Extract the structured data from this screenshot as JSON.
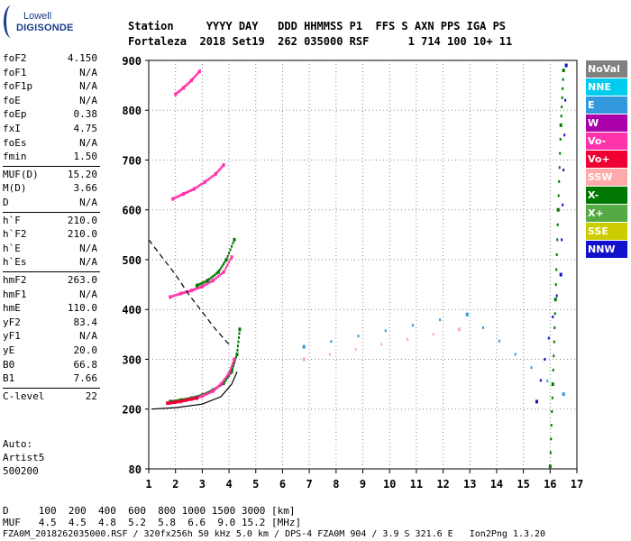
{
  "logo": {
    "line1": "Lowell",
    "line2": "DIGISONDE"
  },
  "header": {
    "row1": "Station     YYYY DAY   DDD HHMMSS P1  FFS S AXN PPS IGA PS",
    "row2": "Fortaleza  2018 Set19  262 035000 RSF      1 714 100 10+ 11"
  },
  "params": {
    "group1": [
      {
        "k": "foF2",
        "v": "4.150"
      },
      {
        "k": "foF1",
        "v": "N/A"
      },
      {
        "k": "foF1p",
        "v": "N/A"
      },
      {
        "k": "foE",
        "v": "N/A"
      },
      {
        "k": "foEp",
        "v": "0.38"
      },
      {
        "k": "fxI",
        "v": "4.75"
      },
      {
        "k": "foEs",
        "v": "N/A"
      },
      {
        "k": "fmin",
        "v": "1.50"
      }
    ],
    "group2": [
      {
        "k": "MUF(D)",
        "v": "15.20"
      },
      {
        "k": "M(D)",
        "v": "3.66"
      },
      {
        "k": "D",
        "v": "N/A"
      }
    ],
    "group3": [
      {
        "k": "h`F",
        "v": "210.0"
      },
      {
        "k": "h`F2",
        "v": "210.0"
      },
      {
        "k": "h`E",
        "v": "N/A"
      },
      {
        "k": "h`Es",
        "v": "N/A"
      }
    ],
    "group4": [
      {
        "k": "hmF2",
        "v": "263.0"
      },
      {
        "k": "hmF1",
        "v": "N/A"
      },
      {
        "k": "hmE",
        "v": "110.0"
      },
      {
        "k": "yF2",
        "v": "83.4"
      },
      {
        "k": "yF1",
        "v": "N/A"
      },
      {
        "k": "yE",
        "v": "20.0"
      },
      {
        "k": "B0",
        "v": "66.8"
      },
      {
        "k": "B1",
        "v": "7.66"
      }
    ],
    "group5": [
      {
        "k": "C-level",
        "v": "22"
      }
    ]
  },
  "auto": {
    "label": "Auto:",
    "artist": "Artist5",
    "version": "500200"
  },
  "legend": [
    {
      "label": "NoVal",
      "color": "#808080"
    },
    {
      "label": "NNE",
      "color": "#00ccee"
    },
    {
      "label": "E",
      "color": "#3399dd"
    },
    {
      "label": "W",
      "color": "#aa00aa"
    },
    {
      "label": "Vo-",
      "color": "#ff33aa"
    },
    {
      "label": "Vo+",
      "color": "#ee0033"
    },
    {
      "label": "SSW",
      "color": "#ffaaaa"
    },
    {
      "label": "X-",
      "color": "#007700"
    },
    {
      "label": "X+",
      "color": "#55aa44"
    },
    {
      "label": "SSE",
      "color": "#cccc00"
    },
    {
      "label": "NNW",
      "color": "#1111cc"
    }
  ],
  "footer": {
    "row1": "D     100  200  400  600  800 1000 1500 3000 [km]",
    "row2": "MUF   4.5  4.5  4.8  5.2  5.8  6.6  9.0 15.2 [MHz]",
    "row3": "FZA0M_2018262035000.RSF / 320fx256h 50 kHz 5.0 km / DPS-4 FZA0M 904 / 3.9 S 321.6 E   Ion2Png 1.3.20"
  },
  "chart_data": {
    "type": "scatter",
    "x_ticks": [
      "1",
      "2",
      "3",
      "4",
      "5",
      "6",
      "7",
      "8",
      "9",
      "10",
      "11",
      "12",
      "13",
      "14",
      "15",
      "16",
      "17"
    ],
    "y_ticks": [
      "80",
      "200",
      "300",
      "400",
      "500",
      "600",
      "700",
      "800",
      "900"
    ],
    "xlim": [
      1,
      17
    ],
    "ylim": [
      80,
      900
    ],
    "grid": true,
    "legend_position": "right",
    "traces": [
      {
        "name": "X-",
        "color": "#007700",
        "x": [
          1.8,
          2.2,
          2.6,
          3.0,
          3.4,
          3.8,
          4.1,
          4.3,
          4.4
        ],
        "y": [
          215,
          218,
          222,
          228,
          238,
          252,
          275,
          310,
          360
        ]
      },
      {
        "name": "Vo-",
        "color": "#ff33aa",
        "x": [
          1.8,
          2.2,
          2.6,
          3.0,
          3.4,
          3.7,
          4.0,
          4.2
        ],
        "y": [
          212,
          215,
          220,
          226,
          236,
          250,
          272,
          300
        ]
      },
      {
        "name": "Vo+",
        "color": "#ee0033",
        "x": [
          1.7,
          2.0,
          2.4,
          2.8
        ],
        "y": [
          212,
          214,
          218,
          222
        ]
      },
      {
        "name": "Vo-",
        "color": "#ff33aa",
        "x": [
          1.8,
          2.2,
          2.6,
          3.0,
          3.4,
          3.8,
          4.1
        ],
        "y": [
          425,
          432,
          438,
          446,
          458,
          475,
          505
        ]
      },
      {
        "name": "Vo-",
        "color": "#ff33aa",
        "x": [
          1.9,
          2.3,
          2.7,
          3.1,
          3.5,
          3.8
        ],
        "y": [
          622,
          632,
          642,
          656,
          672,
          690
        ]
      },
      {
        "name": "Vo-",
        "color": "#ff33aa",
        "x": [
          2.0,
          2.3,
          2.6,
          2.9
        ],
        "y": [
          832,
          845,
          860,
          878
        ]
      },
      {
        "name": "X-",
        "color": "#007700",
        "x": [
          2.8,
          3.2,
          3.6,
          3.9,
          4.2
        ],
        "y": [
          448,
          458,
          475,
          500,
          540
        ]
      },
      {
        "name": "X-",
        "color": "#007700",
        "x": [
          16.0,
          16.1,
          16.2,
          16.3,
          16.4,
          16.5
        ],
        "y": [
          85,
          250,
          420,
          600,
          770,
          880
        ]
      },
      {
        "name": "NNW",
        "color": "#1111cc",
        "x": [
          15.5,
          16.4,
          16.6
        ],
        "y": [
          215,
          470,
          890
        ]
      },
      {
        "name": "SSW",
        "color": "#ffaaaa",
        "x": [
          6.8,
          12.6
        ],
        "y": [
          300,
          360
        ]
      },
      {
        "name": "E",
        "color": "#3399dd",
        "x": [
          6.8,
          12.9,
          16.5
        ],
        "y": [
          325,
          390,
          230
        ]
      }
    ],
    "curves": [
      {
        "name": "profile",
        "style": "solid",
        "color": "#000000",
        "x": [
          1.1,
          2.0,
          3.0,
          3.7,
          4.1,
          4.3
        ],
        "y": [
          200,
          203,
          210,
          225,
          250,
          275
        ]
      },
      {
        "name": "profile-extrapolation",
        "style": "dashed",
        "color": "#000000",
        "x": [
          1.0,
          1.5,
          2.0,
          2.5,
          3.0,
          3.5,
          4.0
        ],
        "y": [
          540,
          505,
          470,
          430,
          395,
          360,
          330
        ]
      }
    ]
  }
}
